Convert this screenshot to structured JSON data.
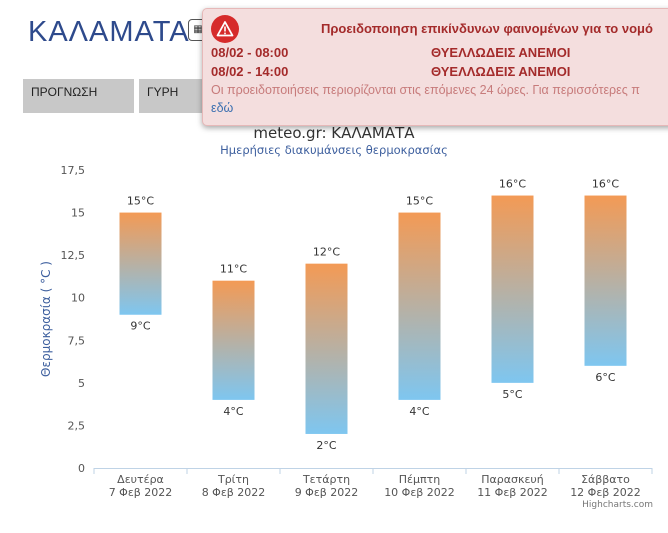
{
  "page": {
    "city": "ΚΑΛΑΜΑΤΑ",
    "calendar_icon": "calendar-icon",
    "tabs": [
      {
        "label": "ΠΡΟΓΝΩΣΗ"
      },
      {
        "label": "ΓΥΡΗ"
      }
    ]
  },
  "alert": {
    "icon": "warning-icon",
    "title": "Προειδοποιηση επικίνδυνων φαινομένων για το νομό",
    "items": [
      {
        "time": "08/02 - 08:00",
        "event": "ΘΥΕΛΛΩΔΕΙΣ ΑΝΕΜΟΙ"
      },
      {
        "time": "08/02 - 14:00",
        "event": "ΘΥΕΛΛΩΔΕΙΣ ΑΝΕΜΟΙ"
      }
    ],
    "note": "Οι προειδοποιήσεις περιορίζονται στις επόμενες 24 ώρες. Για περισσότερες π",
    "link": "εδώ",
    "colors": {
      "background": "#f4dede",
      "text": "#a42b2b",
      "icon": "#d62b2b"
    }
  },
  "chart_data": {
    "type": "columnrange",
    "title": "meteo.gr: ΚΑΛΑΜΑΤΑ",
    "subtitle": "Ημερήσιες διακυμάνσεις θερμοκρασίας",
    "ylabel": "Θερμοκρασία ( °C )",
    "ylim": [
      0,
      17.5
    ],
    "yticks": [
      "0",
      "2,5",
      "5",
      "7,5",
      "10",
      "12,5",
      "15",
      "17,5"
    ],
    "categories": [
      {
        "day": "Δευτέρα",
        "date": "7 Φεβ 2022"
      },
      {
        "day": "Τρίτη",
        "date": "8 Φεβ 2022"
      },
      {
        "day": "Τετάρτη",
        "date": "9 Φεβ 2022"
      },
      {
        "day": "Πέμπτη",
        "date": "10 Φεβ 2022"
      },
      {
        "day": "Παρασκευή",
        "date": "11 Φεβ 2022"
      },
      {
        "day": "Σάββατο",
        "date": "12 Φεβ 2022"
      }
    ],
    "low": [
      9,
      4,
      2,
      4,
      5,
      6
    ],
    "high": [
      15,
      11,
      12,
      15,
      16,
      16
    ],
    "low_labels": [
      "9°C",
      "4°C",
      "2°C",
      "4°C",
      "5°C",
      "6°C"
    ],
    "high_labels": [
      "15°C",
      "11°C",
      "12°C",
      "15°C",
      "16°C",
      "16°C"
    ],
    "grid": false,
    "colors": {
      "warm": "#f39a55",
      "cold": "#7ec6f0",
      "axis_title": "#3d5f9e"
    },
    "credits": "Highcharts.com"
  }
}
